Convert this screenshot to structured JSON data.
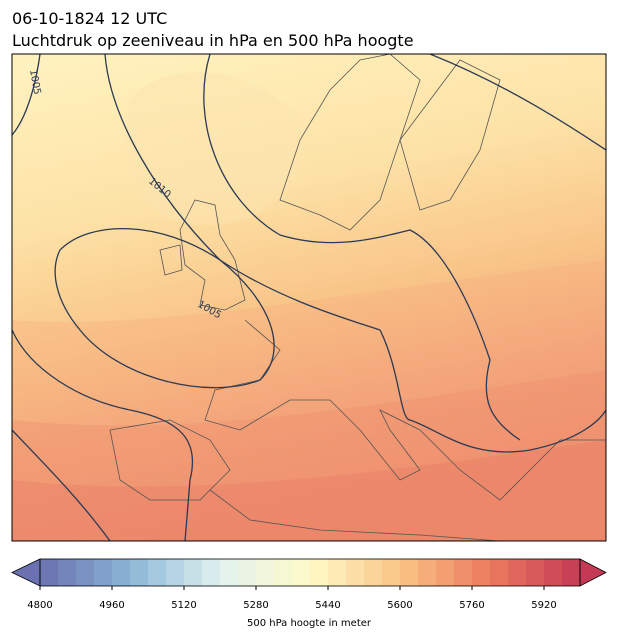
{
  "header": {
    "title": "06-10-1824 12 UTC",
    "subtitle": "Luchtdruk op zeeniveau in hPa en 500 hPa hoogte"
  },
  "map": {
    "contour_labels": [
      1005,
      1010,
      1005
    ]
  },
  "colorbar": {
    "lim": [
      4800,
      6000
    ],
    "step": 40,
    "ticks": [
      4800,
      4960,
      5120,
      5280,
      5440,
      5600,
      5760,
      5920
    ],
    "label": "500 hPa hoogte in meter",
    "colors": [
      "#6a70b0",
      "#8ab6d6",
      "#e2f2f0",
      "#fffac8",
      "#f9c485",
      "#ec7a5e",
      "#c43a55"
    ],
    "extend": "both"
  }
}
